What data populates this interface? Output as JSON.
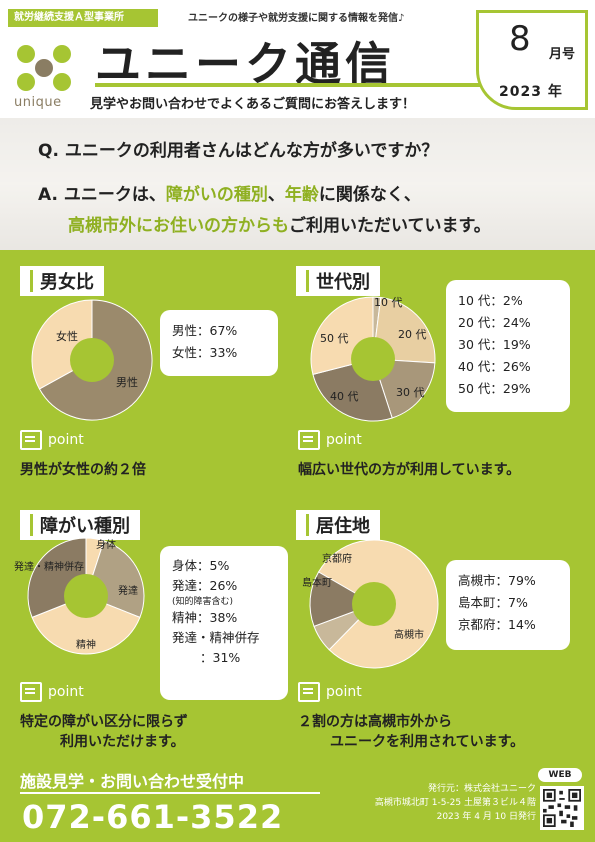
{
  "header": {
    "org_tag": "就労継続支援Ａ型事業所",
    "tagline": "ユニークの様子や就労支援に関する情報を発信♪",
    "logo_text": "unique",
    "title": "ユニーク通信",
    "subtitle": "見学やお問い合わせでよくあるご質問にお答えします！",
    "month": "8",
    "month_unit": "月号",
    "year": "2023 年"
  },
  "qa": {
    "question": "Q. ユニークの利用者さんはどんな方が多いですか？",
    "answer_prefix": "A. ユニークは、",
    "answer_hl1": "障がいの種別",
    "answer_sep": "、",
    "answer_hl2": "年齢",
    "answer_mid": "に関係なく、",
    "answer_hl3": "高槻市外にお住いの方からも",
    "answer_end": "ご利用いただいています。"
  },
  "sections": {
    "gender": {
      "title": "男女比",
      "items": [
        "男性：67%",
        "女性：33%"
      ],
      "point_label": "point",
      "conclusion": "男性が女性の約２倍"
    },
    "generation": {
      "title": "世代別",
      "items": [
        "10 代：2%",
        "20 代：24%",
        "30 代：19%",
        "40 代：26%",
        "50 代：29%"
      ],
      "point_label": "point",
      "conclusion": "幅広い世代の方が利用しています。"
    },
    "disability": {
      "title": "障がい種別",
      "items": [
        "身体：5%",
        "発達：26%",
        "(知的障害含む)",
        "精神：38%",
        "発達・精神併存",
        "：31%"
      ],
      "point_label": "point",
      "conclusion_line1": "特定の障がい区分に限らず",
      "conclusion_line2": "利用いただけます。"
    },
    "residence": {
      "title": "居住地",
      "items": [
        "高槻市：79%",
        "島本町：7%",
        "京都府：14%"
      ],
      "point_label": "point",
      "conclusion_line1": "２割の方は高槻市外から",
      "conclusion_line2": "ユニークを利用されています。"
    }
  },
  "chart_data": [
    {
      "type": "pie",
      "title": "男女比",
      "categories": [
        "男性",
        "女性"
      ],
      "values": [
        67,
        33
      ],
      "colors": [
        "#9b8a6c",
        "#f7dbb0"
      ]
    },
    {
      "type": "pie",
      "title": "世代別",
      "categories": [
        "10 代",
        "20 代",
        "30 代",
        "40 代",
        "50 代"
      ],
      "values": [
        2,
        24,
        19,
        26,
        29
      ],
      "colors": [
        "#c8b89a",
        "#e8cfa2",
        "#a8977a",
        "#8b7b63",
        "#f7dbb0"
      ]
    },
    {
      "type": "pie",
      "title": "障がい種別",
      "categories": [
        "身体",
        "発達",
        "精神",
        "発達・精神併存"
      ],
      "values": [
        5,
        26,
        38,
        31
      ],
      "colors": [
        "#f7dbb0",
        "#b0a184",
        "#f7dbb0",
        "#8b7b63"
      ]
    },
    {
      "type": "pie",
      "title": "居住地",
      "categories": [
        "高槻市",
        "島本町",
        "京都府"
      ],
      "values": [
        79,
        7,
        14
      ],
      "colors": [
        "#f7dbb0",
        "#c8b89a",
        "#8b7b63"
      ]
    }
  ],
  "footer": {
    "heading": "施設見学・お問い合わせ受付中",
    "phone": "072-661-3522",
    "publisher_line1": "発行元：株式会社ユニーク",
    "publisher_line2": "高槻市城北町 1-5-25 土屋第３ビル４階",
    "publisher_line3": "2023 年 4 月 10 日発行",
    "web_label": "WEB"
  },
  "colors": {
    "brand_green": "#a6c533",
    "accent_green": "#8fb021"
  }
}
